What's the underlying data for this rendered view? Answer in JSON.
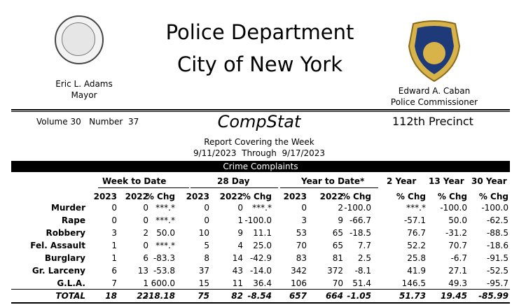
{
  "header": {
    "title_line1": "Police Department",
    "title_line2": "City of New York",
    "mayor_name": "Eric L. Adams",
    "mayor_title": "Mayor",
    "commissioner_name": "Edward A. Caban",
    "commissioner_title": "Police Commissioner"
  },
  "report": {
    "volume": "Volume 30   Number  37",
    "name": "CompStat",
    "precinct": "112th Precinct",
    "covering": "Report Covering the Week",
    "dates": "9/11/2023  Through  9/17/2023",
    "section": "Crime Complaints"
  },
  "table": {
    "groups": [
      "Week to Date",
      "28 Day",
      "Year to Date*",
      "2 Year",
      "13 Year",
      "30 Year"
    ],
    "subheaders": [
      "2023",
      "2022",
      "% Chg",
      "2023",
      "2022",
      "% Chg",
      "2023",
      "2022",
      "% Chg",
      "% Chg",
      "% Chg",
      "% Chg"
    ],
    "rows": [
      {
        "label": "Murder",
        "values": [
          "0",
          "0",
          "***.*",
          "0",
          "0",
          "***.*",
          "0",
          "2",
          "-100.0",
          "***.*",
          "-100.0",
          "-100.0"
        ]
      },
      {
        "label": "Rape",
        "values": [
          "0",
          "0",
          "***.*",
          "0",
          "1",
          "-100.0",
          "3",
          "9",
          "-66.7",
          "-57.1",
          "50.0",
          "-62.5"
        ]
      },
      {
        "label": "Robbery",
        "values": [
          "3",
          "2",
          "50.0",
          "10",
          "9",
          "11.1",
          "53",
          "65",
          "-18.5",
          "76.7",
          "-31.2",
          "-88.5"
        ]
      },
      {
        "label": "Fel. Assault",
        "values": [
          "1",
          "0",
          "***.*",
          "5",
          "4",
          "25.0",
          "70",
          "65",
          "7.7",
          "52.2",
          "70.7",
          "-18.6"
        ]
      },
      {
        "label": "Burglary",
        "values": [
          "1",
          "6",
          "-83.3",
          "8",
          "14",
          "-42.9",
          "83",
          "81",
          "2.5",
          "25.8",
          "-6.7",
          "-91.5"
        ]
      },
      {
        "label": "Gr. Larceny",
        "values": [
          "6",
          "13",
          "-53.8",
          "37",
          "43",
          "-14.0",
          "342",
          "372",
          "-8.1",
          "41.9",
          "27.1",
          "-52.5"
        ]
      },
      {
        "label": "G.L.A.",
        "values": [
          "7",
          "1",
          "600.0",
          "15",
          "11",
          "36.4",
          "106",
          "70",
          "51.4",
          "146.5",
          "49.3",
          "-95.7"
        ]
      }
    ],
    "total": {
      "label": "TOTAL",
      "values": [
        "18",
        "22",
        "-18.18",
        "75",
        "82",
        "-8.54",
        "657",
        "664",
        "-1.05",
        "51.73",
        "19.45",
        "-85.99"
      ]
    }
  }
}
